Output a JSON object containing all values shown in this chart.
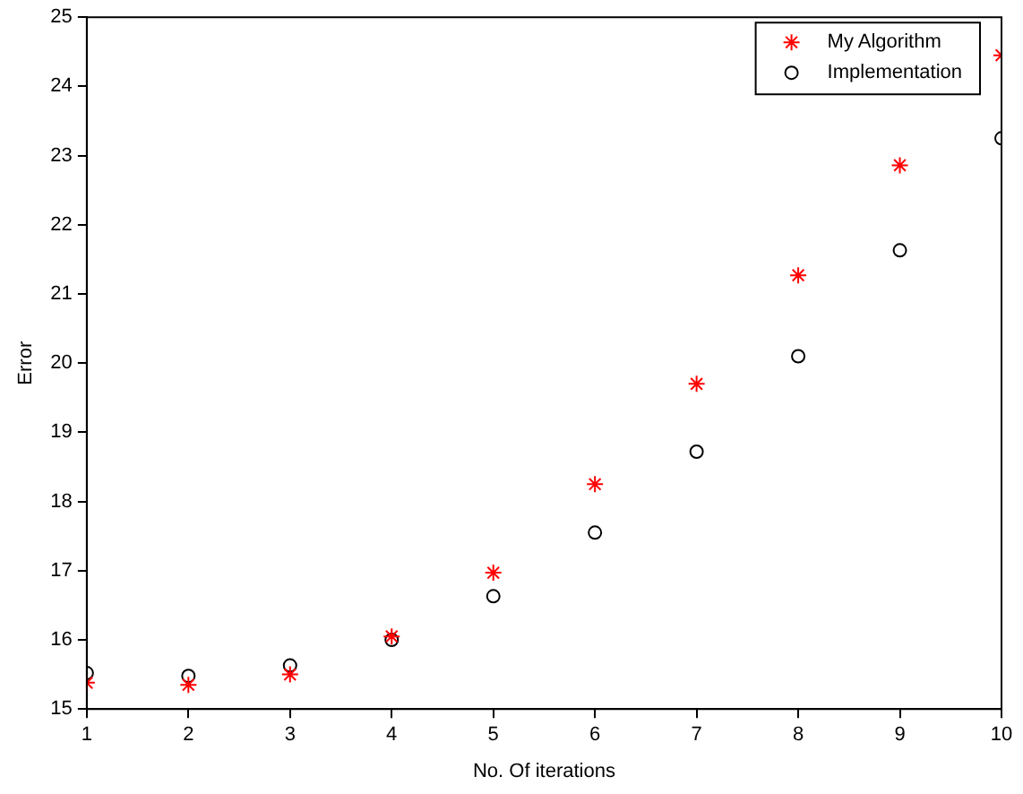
{
  "chart_data": {
    "type": "scatter",
    "xlabel": "No. Of iterations",
    "ylabel": "Error",
    "x": [
      1,
      2,
      3,
      4,
      5,
      6,
      7,
      8,
      9,
      10
    ],
    "series": [
      {
        "name": "My Algorithm",
        "color": "#ff0000",
        "marker": "cross",
        "values": [
          15.38,
          15.35,
          15.5,
          16.05,
          16.97,
          18.25,
          19.7,
          21.27,
          22.86,
          24.45
        ]
      },
      {
        "name": "Implementation",
        "color": "#000000",
        "marker": "circle",
        "values": [
          15.52,
          15.48,
          15.63,
          16.0,
          16.63,
          17.55,
          18.72,
          20.1,
          21.63,
          23.25
        ]
      }
    ],
    "xlim": [
      1,
      10
    ],
    "xticks": [
      1,
      2,
      3,
      4,
      5,
      6,
      7,
      8,
      9,
      10
    ],
    "ylim": [
      15,
      25
    ],
    "yticks": [
      15,
      16,
      17,
      18,
      19,
      20,
      21,
      22,
      23,
      24,
      25
    ],
    "grid": false,
    "legend": "top right"
  }
}
